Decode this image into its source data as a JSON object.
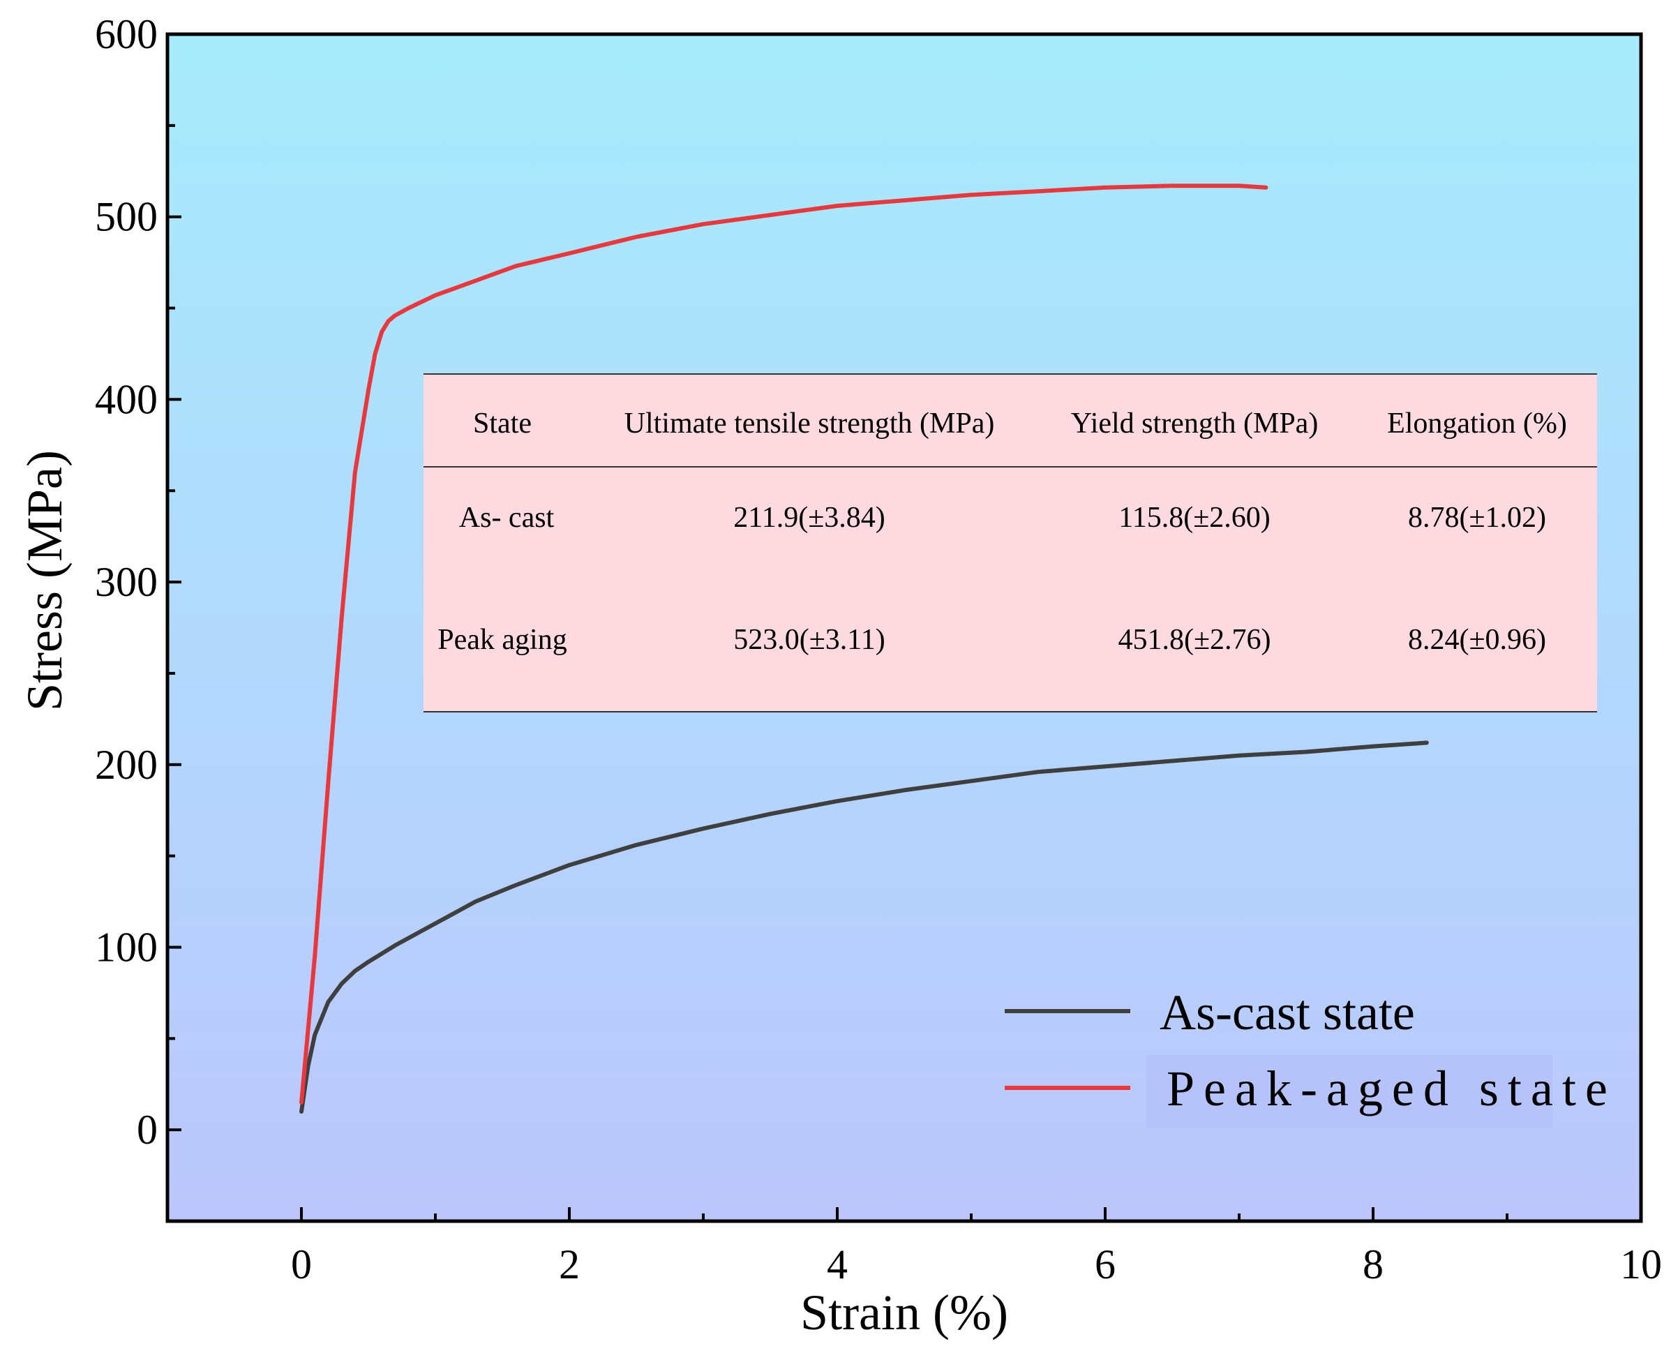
{
  "chart_data": {
    "type": "line",
    "title": "",
    "xlabel": "Strain (%)",
    "ylabel": "Stress (MPa)",
    "xlim": [
      -1,
      10
    ],
    "ylim": [
      -50,
      600
    ],
    "xticks": [
      0,
      2,
      4,
      6,
      8,
      10
    ],
    "yticks": [
      0,
      100,
      200,
      300,
      400,
      500,
      600
    ],
    "grid": false,
    "legend_position": "bottom-right",
    "colors": {
      "plot_bg_top": "#a7ecfc",
      "plot_bg_bottom": "#bcc6fc",
      "table_bg": "#fdd9e0"
    },
    "series": [
      {
        "name": "As-cast state",
        "color": "#3f3f3f",
        "x": [
          0,
          0.05,
          0.1,
          0.2,
          0.3,
          0.4,
          0.5,
          0.7,
          1.0,
          1.3,
          1.6,
          2.0,
          2.5,
          3.0,
          3.5,
          4.0,
          4.5,
          5.0,
          5.5,
          6.0,
          6.5,
          7.0,
          7.5,
          8.0,
          8.4
        ],
        "y": [
          10,
          35,
          52,
          70,
          80,
          87,
          92,
          101,
          113,
          125,
          134,
          145,
          156,
          165,
          173,
          180,
          186,
          191,
          196,
          199,
          202,
          205,
          207,
          210,
          212
        ]
      },
      {
        "name": "Peak-aged state",
        "color": "#e8383d",
        "x": [
          0,
          0.1,
          0.2,
          0.3,
          0.4,
          0.5,
          0.55,
          0.6,
          0.65,
          0.7,
          0.8,
          1.0,
          1.3,
          1.6,
          2.0,
          2.5,
          3.0,
          3.5,
          4.0,
          4.5,
          5.0,
          5.5,
          6.0,
          6.5,
          7.0,
          7.2
        ],
        "y": [
          15,
          95,
          190,
          280,
          360,
          405,
          425,
          437,
          443,
          446,
          450,
          457,
          465,
          473,
          480,
          489,
          496,
          501,
          506,
          509,
          512,
          514,
          516,
          517,
          517,
          516
        ]
      }
    ]
  },
  "table": {
    "headers": [
      "State",
      "Ultimate tensile strength (MPa)",
      "Yield strength (MPa)",
      "Elongation (%)"
    ],
    "rows": [
      [
        "As- cast",
        "211.9(±3.84)",
        "115.8(±2.60)",
        "8.78(±1.02)"
      ],
      [
        "Peak aging",
        "523.0(±3.11)",
        "451.8(±2.76)",
        "8.24(±0.96)"
      ]
    ]
  },
  "legend": {
    "items": [
      "As-cast state",
      "Peak-aged state"
    ]
  }
}
